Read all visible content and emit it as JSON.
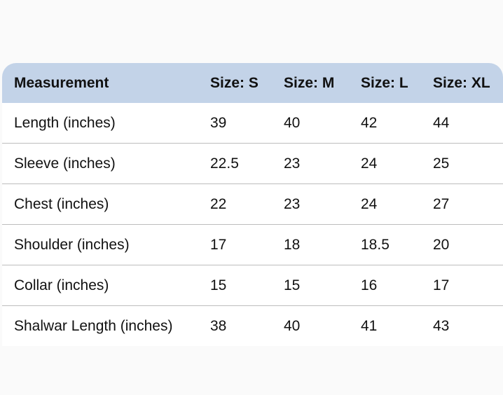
{
  "table": {
    "headers": [
      "Measurement",
      "Size: S",
      "Size: M",
      "Size: L",
      "Size: XL"
    ],
    "rows": [
      [
        "Length (inches)",
        "39",
        "40",
        "42",
        "44"
      ],
      [
        "Sleeve (inches)",
        "22.5",
        "23",
        "24",
        "25"
      ],
      [
        "Chest (inches)",
        "22",
        "23",
        "24",
        "27"
      ],
      [
        "Shoulder (inches)",
        "17",
        "18",
        "18.5",
        "20"
      ],
      [
        "Collar (inches)",
        "15",
        "15",
        "16",
        "17"
      ],
      [
        "Shalwar Length (inches)",
        "38",
        "40",
        "41",
        "43"
      ]
    ]
  },
  "colors": {
    "header_background": "#c3d3e8"
  }
}
